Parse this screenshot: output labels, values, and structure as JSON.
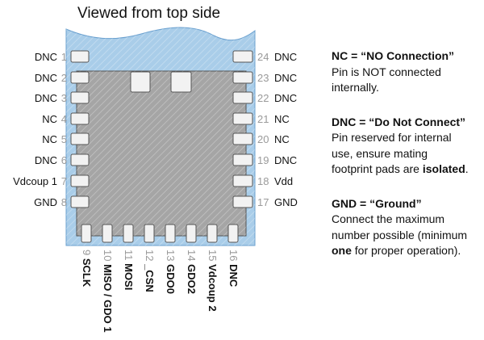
{
  "title": "Viewed from top side",
  "colors": {
    "board": "#a9cde9",
    "board_edge": "#6aa0cf",
    "die": "#a5a5a5",
    "pad": "#f2f2f2",
    "pin_number": "#9a9a9a",
    "text": "#111111"
  },
  "pins_left": [
    {
      "num": "1",
      "name": "DNC"
    },
    {
      "num": "2",
      "name": "DNC"
    },
    {
      "num": "3",
      "name": "DNC"
    },
    {
      "num": "4",
      "name": "NC"
    },
    {
      "num": "5",
      "name": "NC"
    },
    {
      "num": "6",
      "name": "DNC"
    },
    {
      "num": "7",
      "name": "Vdcoup 1"
    },
    {
      "num": "8",
      "name": "GND"
    }
  ],
  "pins_bottom": [
    {
      "num": "9",
      "name": "SCLK"
    },
    {
      "num": "10",
      "name": "MISO / GDO 1"
    },
    {
      "num": "11",
      "name": "MOSI"
    },
    {
      "num": "12",
      "name": "_CSN"
    },
    {
      "num": "13",
      "name": "GDO0"
    },
    {
      "num": "14",
      "name": "GDO2"
    },
    {
      "num": "15",
      "name": "Vdcoup 2"
    },
    {
      "num": "16",
      "name": "DNC"
    }
  ],
  "pins_right": [
    {
      "num": "24",
      "name": "DNC"
    },
    {
      "num": "23",
      "name": "DNC"
    },
    {
      "num": "22",
      "name": "DNC"
    },
    {
      "num": "21",
      "name": "NC"
    },
    {
      "num": "20",
      "name": "NC"
    },
    {
      "num": "19",
      "name": "DNC"
    },
    {
      "num": "18",
      "name": "Vdd"
    },
    {
      "num": "17",
      "name": "GND"
    }
  ],
  "legend": [
    {
      "heading": "NC = “NO Connection”",
      "lines": [
        [
          {
            "t": "Pin is NOT connected"
          }
        ],
        [
          {
            "t": "internally."
          }
        ]
      ]
    },
    {
      "heading": "DNC = “Do Not Connect”",
      "lines": [
        [
          {
            "t": "Pin reserved for internal"
          }
        ],
        [
          {
            "t": "use, ensure mating"
          }
        ],
        [
          {
            "t": "footprint pads are "
          },
          {
            "t": "isolated",
            "b": true
          },
          {
            "t": "."
          }
        ]
      ]
    },
    {
      "heading": "GND = “Ground”",
      "lines": [
        [
          {
            "t": "Connect the maximum"
          }
        ],
        [
          {
            "t": "number possible (minimum"
          }
        ],
        [
          {
            "t": "one",
            "b": true
          },
          {
            "t": " for proper operation)."
          }
        ]
      ]
    }
  ]
}
